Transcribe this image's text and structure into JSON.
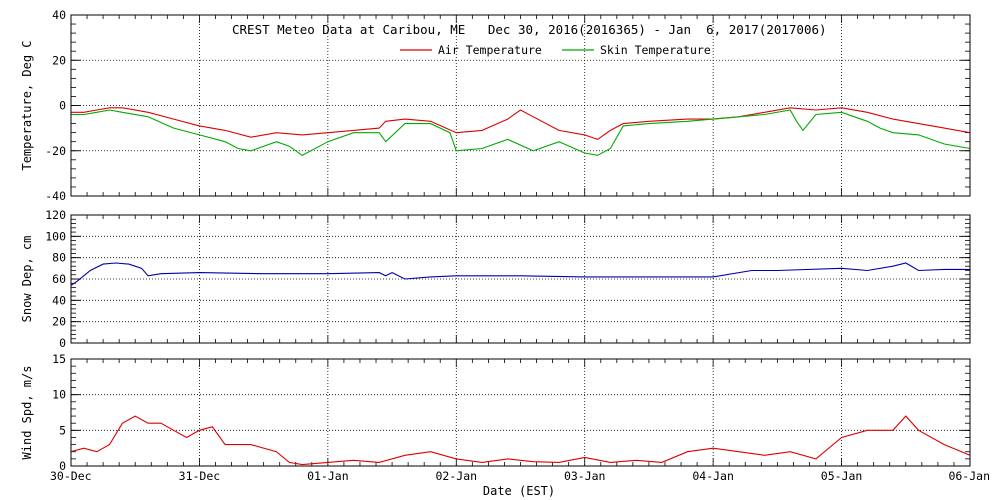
{
  "chart_data": {
    "title": "CREST Meteo Data at Caribou, ME   Dec 30, 2016(2016365) - Jan  6, 2017(2017006)",
    "xlabel": "Date (EST)",
    "x_ticks": [
      "30-Dec",
      "31-Dec",
      "01-Jan",
      "02-Jan",
      "03-Jan",
      "04-Jan",
      "05-Jan",
      "06-Jan"
    ],
    "xlim_days": [
      0,
      7
    ],
    "colors": {
      "air": "#dd0000",
      "skin": "#00aa00",
      "snow": "#0000aa",
      "wind": "#dd0000"
    },
    "panels": [
      {
        "type": "line",
        "ylabel": "Temperature, Deg C",
        "ylim": [
          -40,
          40
        ],
        "y_ticks": [
          "-40",
          "-20",
          "0",
          "20",
          "40"
        ],
        "y_tick_values": [
          -40,
          -20,
          0,
          20,
          40
        ],
        "legend": [
          "Air Temperature",
          "Skin Temperature"
        ],
        "legend_position": "top-center",
        "series": [
          {
            "name": "Air Temperature",
            "key": "air",
            "x": [
              0,
              0.1,
              0.2,
              0.3,
              0.4,
              0.6,
              0.8,
              1.0,
              1.2,
              1.4,
              1.6,
              1.8,
              2.0,
              2.2,
              2.4,
              2.45,
              2.6,
              2.8,
              3.0,
              3.2,
              3.4,
              3.5,
              3.6,
              3.8,
              4.0,
              4.1,
              4.2,
              4.3,
              4.5,
              4.8,
              5.0,
              5.2,
              5.4,
              5.6,
              5.8,
              6.0,
              6.2,
              6.4,
              6.6,
              6.8,
              7.0
            ],
            "y": [
              -3,
              -3,
              -2,
              -1,
              -1,
              -3,
              -6,
              -9,
              -11,
              -14,
              -12,
              -13,
              -12,
              -11,
              -10,
              -7,
              -6,
              -7,
              -12,
              -11,
              -6,
              -2,
              -5,
              -11,
              -13,
              -15,
              -11,
              -8,
              -7,
              -6,
              -6,
              -5,
              -3,
              -1,
              -2,
              -1,
              -3,
              -6,
              -8,
              -10,
              -12
            ]
          },
          {
            "name": "Skin Temperature",
            "key": "skin",
            "x": [
              0,
              0.1,
              0.2,
              0.3,
              0.4,
              0.6,
              0.8,
              1.0,
              1.2,
              1.3,
              1.4,
              1.6,
              1.7,
              1.8,
              2.0,
              2.2,
              2.4,
              2.45,
              2.6,
              2.8,
              2.95,
              3.0,
              3.2,
              3.4,
              3.6,
              3.8,
              4.0,
              4.1,
              4.2,
              4.3,
              4.5,
              4.8,
              5.0,
              5.2,
              5.4,
              5.6,
              5.65,
              5.7,
              5.8,
              6.0,
              6.2,
              6.3,
              6.4,
              6.6,
              6.8,
              7.0
            ],
            "y": [
              -4,
              -4,
              -3,
              -2,
              -3,
              -5,
              -10,
              -13,
              -16,
              -19,
              -20,
              -16,
              -18,
              -22,
              -16,
              -12,
              -12,
              -16,
              -8,
              -8,
              -12,
              -20,
              -19,
              -15,
              -20,
              -16,
              -21,
              -22,
              -19,
              -9,
              -8,
              -7,
              -6,
              -5,
              -4,
              -2,
              -7,
              -11,
              -4,
              -3,
              -7,
              -10,
              -12,
              -13,
              -17,
              -19
            ]
          }
        ]
      },
      {
        "type": "line",
        "ylabel": "Snow Dep, cm",
        "ylim": [
          0,
          120
        ],
        "y_ticks": [
          "0",
          "20",
          "40",
          "60",
          "80",
          "100",
          "120"
        ],
        "y_tick_values": [
          0,
          20,
          40,
          60,
          80,
          100,
          120
        ],
        "series": [
          {
            "name": "",
            "key": "snow",
            "x": [
              0,
              0.05,
              0.15,
              0.25,
              0.35,
              0.45,
              0.55,
              0.6,
              0.7,
              1.0,
              1.5,
              2.0,
              2.4,
              2.45,
              2.5,
              2.6,
              2.8,
              3.0,
              3.5,
              4.0,
              4.5,
              5.0,
              5.3,
              5.5,
              6.0,
              6.2,
              6.4,
              6.5,
              6.6,
              6.8,
              7.0
            ],
            "y": [
              54,
              58,
              68,
              74,
              75,
              74,
              70,
              63,
              65,
              66,
              65,
              65,
              66,
              63,
              66,
              60,
              62,
              63,
              63,
              62,
              62,
              62,
              68,
              68,
              70,
              68,
              72,
              75,
              68,
              69,
              69
            ]
          }
        ]
      },
      {
        "type": "line",
        "ylabel": "Wind Spd, m/s",
        "ylim": [
          0,
          15
        ],
        "y_ticks": [
          "0",
          "5",
          "10",
          "15"
        ],
        "y_tick_values": [
          0,
          5,
          10,
          15
        ],
        "series": [
          {
            "name": "",
            "key": "wind",
            "x": [
              0,
              0.1,
              0.2,
              0.3,
              0.4,
              0.5,
              0.6,
              0.7,
              0.8,
              0.9,
              1.0,
              1.1,
              1.2,
              1.4,
              1.6,
              1.7,
              1.8,
              2.0,
              2.2,
              2.4,
              2.6,
              2.8,
              3.0,
              3.2,
              3.4,
              3.6,
              3.8,
              4.0,
              4.2,
              4.4,
              4.6,
              4.8,
              5.0,
              5.2,
              5.4,
              5.6,
              5.8,
              6.0,
              6.2,
              6.4,
              6.5,
              6.6,
              6.8,
              7.0
            ],
            "y": [
              2,
              2.5,
              2,
              3,
              6,
              7,
              6,
              6,
              5,
              4,
              5,
              5.5,
              3,
              3,
              2,
              0.5,
              0.2,
              0.5,
              0.8,
              0.5,
              1.5,
              2,
              1,
              0.5,
              1,
              0.6,
              0.5,
              1.2,
              0.5,
              0.8,
              0.5,
              2,
              2.5,
              2,
              1.5,
              2,
              1,
              4,
              5,
              5,
              7,
              5,
              3,
              1.5
            ]
          }
        ]
      }
    ]
  }
}
